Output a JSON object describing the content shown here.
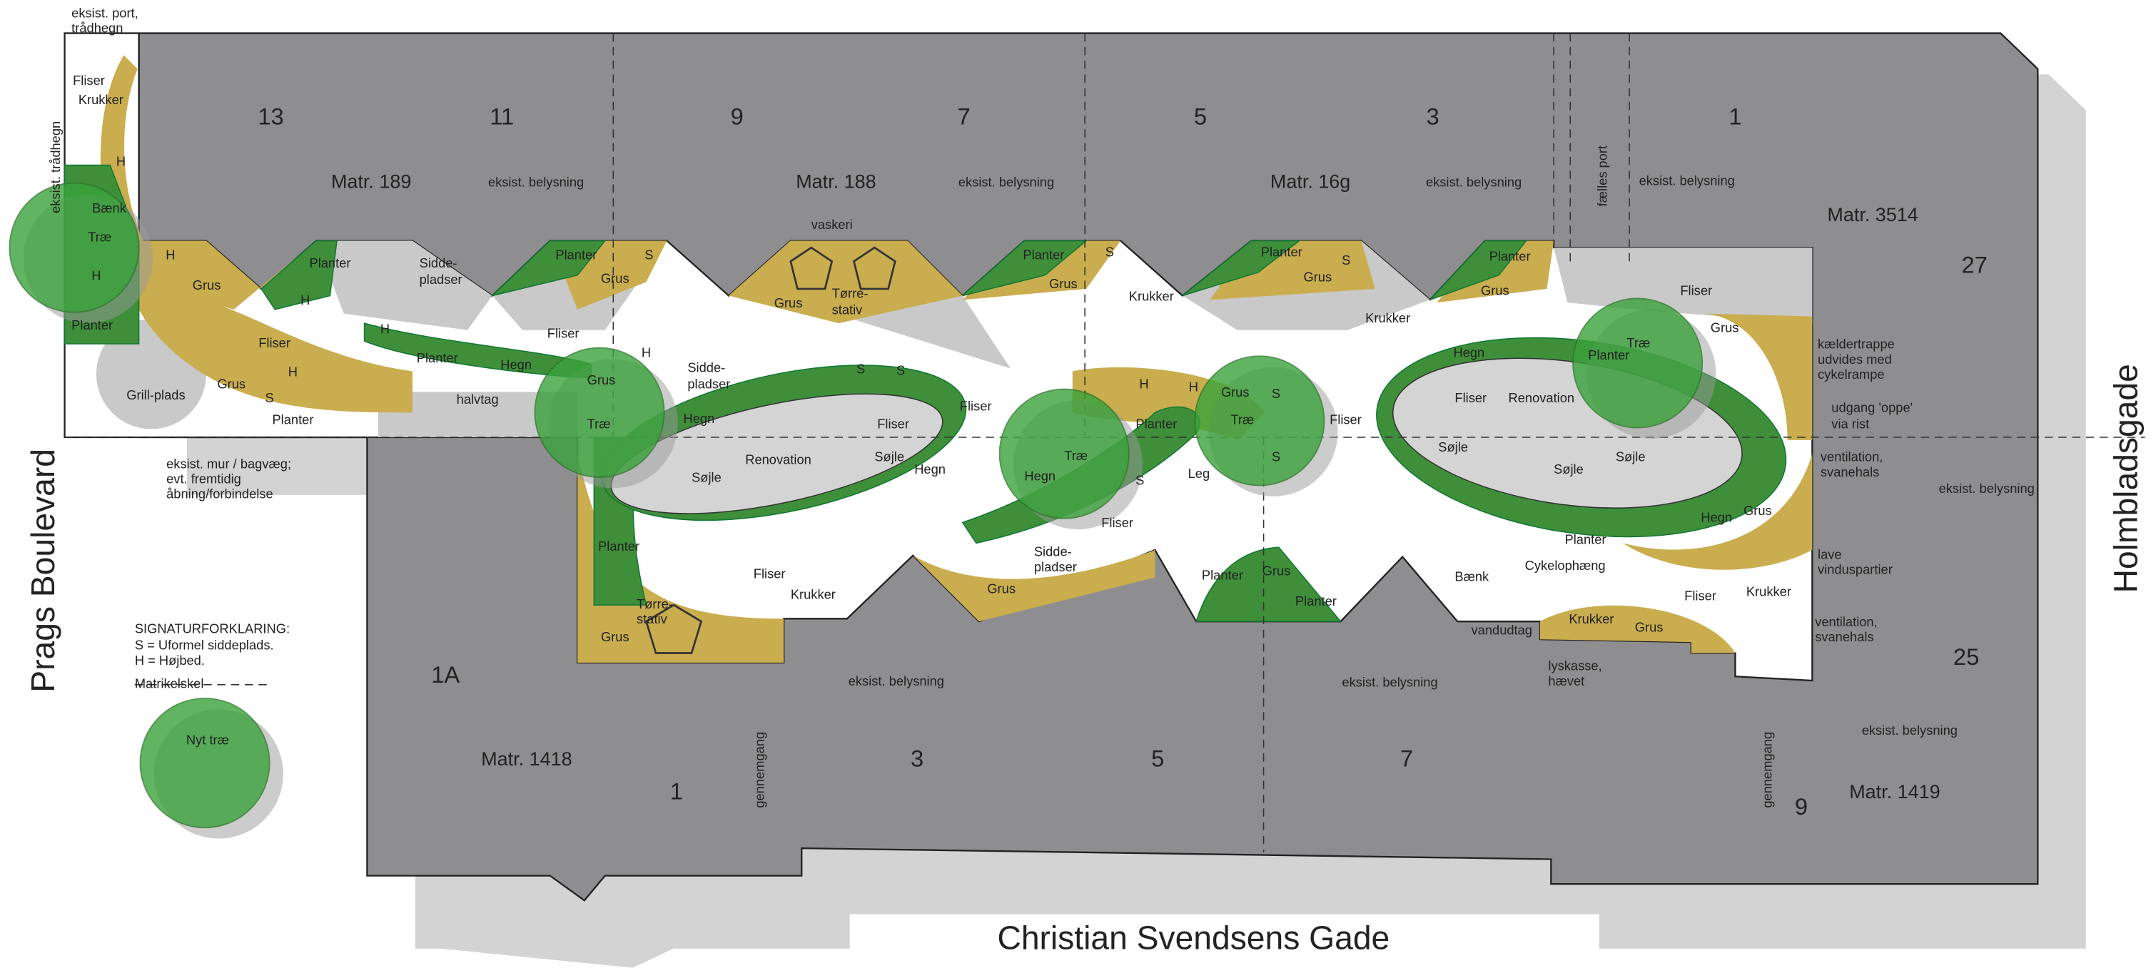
{
  "streets": [
    "Prags Boulevard",
    "Christian Svendsens Gade",
    "Holmbladsgade"
  ],
  "house_numbers": [
    "13",
    "11",
    "9",
    "7",
    "5",
    "3",
    "1",
    "27",
    "25",
    "1A",
    "1",
    "3",
    "5",
    "7",
    "9"
  ],
  "cadastres": [
    "Matr. 189",
    "Matr. 188",
    "Matr. 16g",
    "Matr. 3514",
    "Matr. 1418",
    "Matr. 1419"
  ],
  "passages": [
    "gennemgang",
    "gennemgang"
  ],
  "legend": {
    "title": "SIGNATURFORKLARING:",
    "lines": [
      "S = Uformel siddeplads.",
      "H = Højbed."
    ],
    "boundary": "Matrikelskel",
    "tree": "Nyt træ"
  },
  "labels": [
    "eksist. port,",
    "trådhegn",
    "Fliser",
    "Krukker",
    "H",
    "eksist. trådhegn",
    "Bænk",
    "Træ",
    "H",
    "Planter",
    "H",
    "Grus",
    "Planter",
    "H",
    "Sidde-",
    "pladser",
    "Fliser",
    "Grill-plads",
    "Grus",
    "S",
    "H",
    "Planter",
    "H",
    "Planter",
    "Hegn",
    "Fliser",
    "halvtag",
    "Grus",
    "Træ",
    "H",
    "Sidde-",
    "pladser",
    "Planter",
    "S",
    "Grus",
    "vaskeri",
    "Grus",
    "Tørre-",
    "stativ",
    "eksist. belysning",
    "eksist. belysning",
    "eksist. belysning",
    "eksist. belysning",
    "Planter",
    "Grus",
    "S",
    "Krukker",
    "Planter",
    "S",
    "Grus",
    "Krukker",
    "Planter",
    "Grus",
    "fælles port",
    "Fliser",
    "S",
    "S",
    "Hegn",
    "Fliser",
    "Fliser",
    "Renovation",
    "Søjle",
    "Søjle",
    "Hegn",
    "H",
    "H",
    "Planter",
    "Grus",
    "Træ",
    "S",
    "S",
    "Fliser",
    "Træ",
    "Hegn",
    "S",
    "Leg",
    "Fliser",
    "Hegn",
    "Træ",
    "Planter",
    "Grus",
    "Fliser",
    "Renovation",
    "Søjle",
    "Søjle",
    "Søjle",
    "kældertrappe",
    "udvides med",
    "cykelrampe",
    "udgang 'oppe'",
    "via rist",
    "ventilation,",
    "svanehals",
    "eksist. belysning",
    "Hegn",
    "Grus",
    "lave",
    "vinduspartier",
    "Krukker",
    "ventilation,",
    "svanehals",
    "eksist. belysning",
    "Fliser",
    "Krukker",
    "Grus",
    "lyskasse,",
    "hævet",
    "vandudtag",
    "Bænk",
    "Cykelophæng",
    "Planter",
    "eksist. belysning",
    "eksist. belysning",
    "Planter",
    "Grus",
    "Planter",
    "Grus",
    "Sidde-",
    "pladser",
    "Fliser",
    "Krukker",
    "Planter",
    "Tørre-",
    "stativ",
    "Grus",
    "eksist. mur / bagvæg;",
    "evt. fremtidig",
    "åbning/forbindelse"
  ]
}
